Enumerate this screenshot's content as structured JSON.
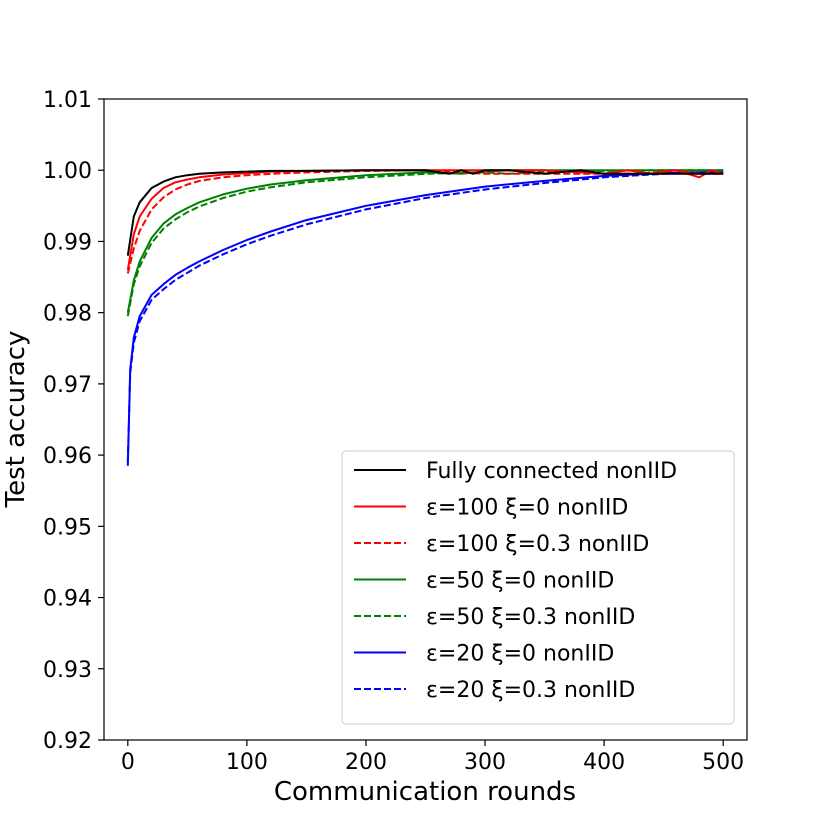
{
  "chart_data": {
    "type": "line",
    "xlabel": "Communication rounds",
    "ylabel": "Test accuracy",
    "xlim": [
      -20,
      520
    ],
    "ylim": [
      0.92,
      1.01
    ],
    "xticks": [
      "0",
      "100",
      "200",
      "300",
      "400",
      "500"
    ],
    "xtick_values": [
      0,
      100,
      200,
      300,
      400,
      500
    ],
    "yticks": [
      "0.92",
      "0.93",
      "0.94",
      "0.95",
      "0.96",
      "0.97",
      "0.98",
      "0.99",
      "1.00",
      "1.01"
    ],
    "ytick_values": [
      0.92,
      0.93,
      0.94,
      0.95,
      0.96,
      0.97,
      0.98,
      0.99,
      1.0,
      1.01
    ],
    "legend_position": "lower-right",
    "grid": false,
    "series": [
      {
        "name": "Fully connected nonIID",
        "color": "#000000",
        "dash": "solid",
        "x": [
          0,
          5,
          10,
          20,
          30,
          40,
          50,
          60,
          80,
          100,
          120,
          150,
          200,
          250,
          270,
          280,
          290,
          300,
          320,
          350,
          380,
          400,
          420,
          440,
          460,
          480,
          500
        ],
        "y": [
          0.988,
          0.9935,
          0.9955,
          0.9975,
          0.9984,
          0.999,
          0.9993,
          0.9995,
          0.9997,
          0.9998,
          0.9999,
          0.9999,
          1.0,
          1.0,
          0.9995,
          1.0,
          0.9995,
          1.0,
          1.0,
          0.9995,
          1.0,
          0.9995,
          0.9995,
          0.9995,
          0.9995,
          0.9995,
          0.9995
        ]
      },
      {
        "name": "ε=100 ξ=0 nonIID",
        "color": "#ff0000",
        "dash": "solid",
        "x": [
          0,
          5,
          10,
          20,
          30,
          40,
          50,
          60,
          80,
          100,
          120,
          150,
          200,
          250,
          300,
          350,
          400,
          420,
          440,
          460,
          470,
          480,
          490,
          500
        ],
        "y": [
          0.986,
          0.991,
          0.9935,
          0.996,
          0.9975,
          0.9983,
          0.9987,
          0.999,
          0.9994,
          0.9996,
          0.9998,
          0.9999,
          1.0,
          1.0,
          1.0,
          1.0,
          0.9995,
          1.0,
          0.9995,
          1.0,
          0.9995,
          0.999,
          1.0,
          0.9995
        ]
      },
      {
        "name": "ε=100 ξ=0.3 nonIID",
        "color": "#ff0000",
        "dash": "dashed",
        "x": [
          0,
          5,
          10,
          20,
          30,
          40,
          50,
          60,
          80,
          100,
          120,
          150,
          200,
          250,
          300,
          350,
          400,
          430,
          460,
          480,
          500
        ],
        "y": [
          0.9855,
          0.989,
          0.9915,
          0.9945,
          0.9962,
          0.9973,
          0.998,
          0.9985,
          0.999,
          0.9993,
          0.9995,
          0.9997,
          0.9999,
          1.0,
          0.9995,
          0.9995,
          0.9995,
          0.9995,
          1.0,
          0.9995,
          0.9995
        ]
      },
      {
        "name": "ε=50 ξ=0 nonIID",
        "color": "#008000",
        "dash": "solid",
        "x": [
          0,
          5,
          10,
          20,
          30,
          40,
          50,
          60,
          80,
          100,
          120,
          150,
          200,
          250,
          280,
          300,
          320,
          350,
          400,
          450,
          500
        ],
        "y": [
          0.98,
          0.9845,
          0.9872,
          0.9905,
          0.9925,
          0.9938,
          0.9947,
          0.9955,
          0.9966,
          0.9974,
          0.998,
          0.9986,
          0.9993,
          0.9997,
          0.9995,
          0.9998,
          1.0,
          1.0,
          1.0,
          1.0,
          1.0
        ]
      },
      {
        "name": "ε=50 ξ=0.3 nonIID",
        "color": "#008000",
        "dash": "dashed",
        "x": [
          0,
          5,
          10,
          20,
          30,
          40,
          50,
          60,
          80,
          100,
          120,
          150,
          200,
          250,
          300,
          320,
          350,
          400,
          450,
          500
        ],
        "y": [
          0.9795,
          0.984,
          0.9865,
          0.9898,
          0.9918,
          0.9931,
          0.9941,
          0.9949,
          0.9961,
          0.997,
          0.9976,
          0.9983,
          0.999,
          0.9995,
          0.9997,
          0.9995,
          0.9998,
          0.9999,
          1.0,
          1.0
        ]
      },
      {
        "name": "ε=20 ξ=0 nonIID",
        "color": "#0000ff",
        "dash": "solid",
        "x": [
          0,
          2,
          5,
          10,
          20,
          30,
          40,
          50,
          60,
          80,
          100,
          120,
          150,
          200,
          250,
          300,
          350,
          400,
          450,
          500
        ],
        "y": [
          0.9585,
          0.972,
          0.9765,
          0.9795,
          0.9825,
          0.984,
          0.9853,
          0.9863,
          0.9872,
          0.9888,
          0.9902,
          0.9914,
          0.993,
          0.995,
          0.9965,
          0.9977,
          0.9985,
          0.9992,
          0.9996,
          0.9998
        ]
      },
      {
        "name": "ε=20 ξ=0.3 nonIID",
        "color": "#0000ff",
        "dash": "dashed",
        "x": [
          0,
          2,
          5,
          10,
          20,
          30,
          40,
          50,
          60,
          80,
          100,
          120,
          150,
          200,
          250,
          300,
          350,
          400,
          450,
          500
        ],
        "y": [
          0.959,
          0.9715,
          0.9758,
          0.9788,
          0.9818,
          0.9833,
          0.9846,
          0.9856,
          0.9866,
          0.9882,
          0.9896,
          0.9908,
          0.9924,
          0.9945,
          0.9961,
          0.9973,
          0.9982,
          0.999,
          0.9995,
          0.9997
        ]
      }
    ]
  }
}
